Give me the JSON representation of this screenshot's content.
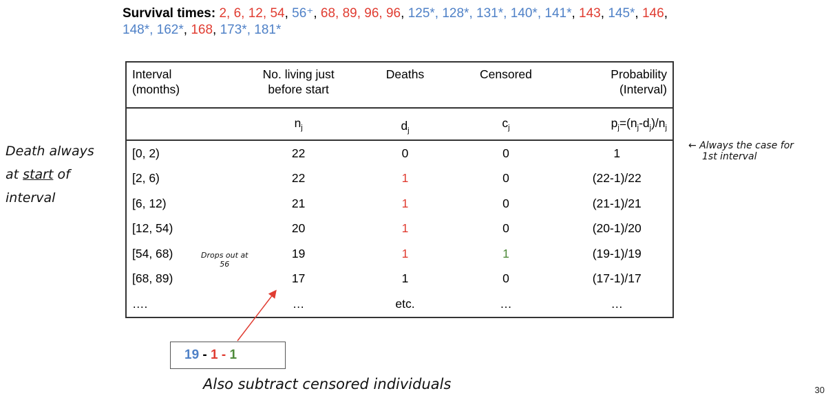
{
  "survival_times": {
    "label": "Survival times:",
    "items": [
      {
        "text": "2",
        "type": "death"
      },
      {
        "text": "6",
        "type": "death"
      },
      {
        "text": "12",
        "type": "death"
      },
      {
        "text": "54",
        "type": "death"
      },
      {
        "text": "56⁺",
        "type": "censored"
      },
      {
        "text": "68",
        "type": "death"
      },
      {
        "text": "89",
        "type": "death"
      },
      {
        "text": "96",
        "type": "death"
      },
      {
        "text": "96",
        "type": "death"
      },
      {
        "text": "125*",
        "type": "censored"
      },
      {
        "text": "128*",
        "type": "censored"
      },
      {
        "text": "131*",
        "type": "censored"
      },
      {
        "text": "140*",
        "type": "censored"
      },
      {
        "text": "141*",
        "type": "censored"
      },
      {
        "text": "143",
        "type": "death"
      },
      {
        "text": "145*",
        "type": "censored"
      },
      {
        "text": "146",
        "type": "death"
      },
      {
        "text": "148*",
        "type": "censored"
      },
      {
        "text": "162*",
        "type": "censored"
      },
      {
        "text": "168",
        "type": "death"
      },
      {
        "text": "173*",
        "type": "censored"
      },
      {
        "text": "181*",
        "type": "censored"
      }
    ]
  },
  "colors": {
    "death": "#e03c31",
    "censored": "#4f81c7",
    "green": "#4e8a3a"
  },
  "table": {
    "headers": {
      "interval_l1": "Interval",
      "interval_l2": "(months)",
      "living_l1": "No. living just",
      "living_l2": "before start",
      "deaths": "Deaths",
      "censored": "Censored",
      "prob_l1": "Probability",
      "prob_l2": "(Interval)"
    },
    "symbols": {
      "n": "n",
      "d": "d",
      "c": "c",
      "j": "j",
      "p_formula": {
        "p": "p",
        "eq_open": "=(n",
        "minus": "-d",
        "close": ")/n"
      }
    },
    "rows": [
      {
        "interval": "[0, 2)",
        "n": "22",
        "d": "0",
        "c": "0",
        "p": "1"
      },
      {
        "interval": "[2, 6)",
        "n": "22",
        "d": "1",
        "c": "0",
        "p": "(22-1)/22"
      },
      {
        "interval": "[6, 12)",
        "n": "21",
        "d": "1",
        "c": "0",
        "p": "(21-1)/21"
      },
      {
        "interval": "[12, 54)",
        "n": "20",
        "d": "1",
        "c": "0",
        "p": "(20-1)/20"
      },
      {
        "interval": "[54, 68)",
        "n": "19",
        "d": "1",
        "c": "1",
        "p": "(19-1)/19"
      },
      {
        "interval": "[68, 89)",
        "n": "17",
        "d": "1",
        "c": "0",
        "p": "(17-1)/17"
      },
      {
        "interval": "….",
        "n": "…",
        "d": "etc.",
        "c": "…",
        "p": "…"
      }
    ]
  },
  "calc_box": {
    "a": "19",
    "op1": " - ",
    "b": "1",
    "op2": " - ",
    "c": "1"
  },
  "annotations": {
    "left_note": [
      "Death always",
      "at start of",
      "interval"
    ],
    "right_note": [
      "← Always the case for",
      "1st interval"
    ],
    "drops_out": [
      "Drops out at",
      "56"
    ],
    "bottom_note": "Also subtract censored individuals"
  },
  "page_number": "30"
}
